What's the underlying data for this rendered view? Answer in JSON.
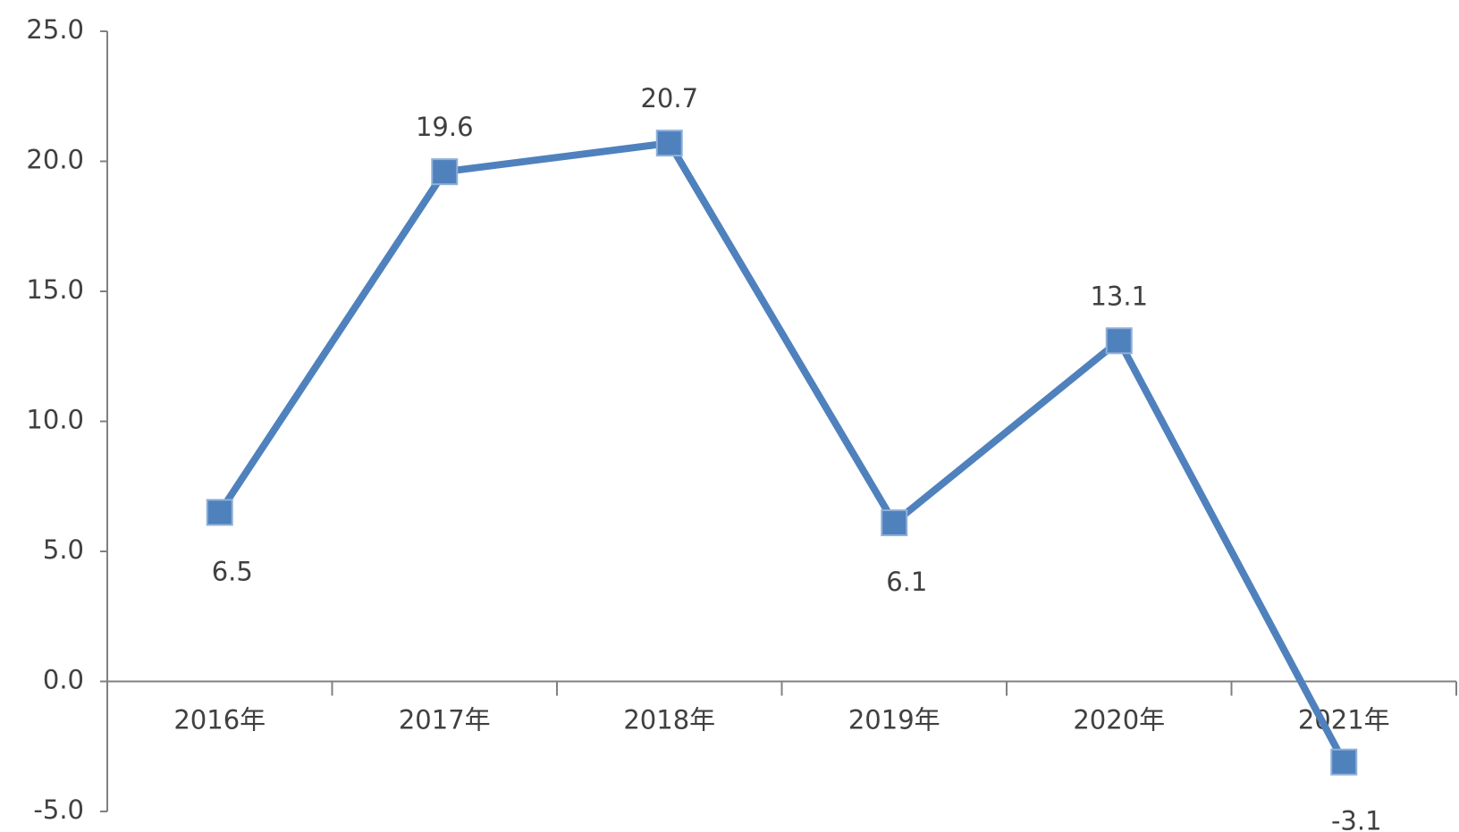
{
  "chart_data": {
    "type": "line",
    "categories": [
      "2016年",
      "2017年",
      "2018年",
      "2019年",
      "2020年",
      "2021年"
    ],
    "series": [
      {
        "name": "value",
        "color": "#4f81bd",
        "values": [
          6.5,
          19.6,
          20.7,
          6.1,
          13.1,
          -3.1
        ]
      }
    ],
    "ylim": [
      -5,
      25
    ],
    "yticks": [
      {
        "value": -5,
        "label": "-5.0"
      },
      {
        "value": 0,
        "label": "0.0"
      },
      {
        "value": 5,
        "label": "5.0"
      },
      {
        "value": 10,
        "label": "10.0"
      },
      {
        "value": 15,
        "label": "15.0"
      },
      {
        "value": 20,
        "label": "20.0"
      },
      {
        "value": 25,
        "label": "25.0"
      }
    ]
  }
}
